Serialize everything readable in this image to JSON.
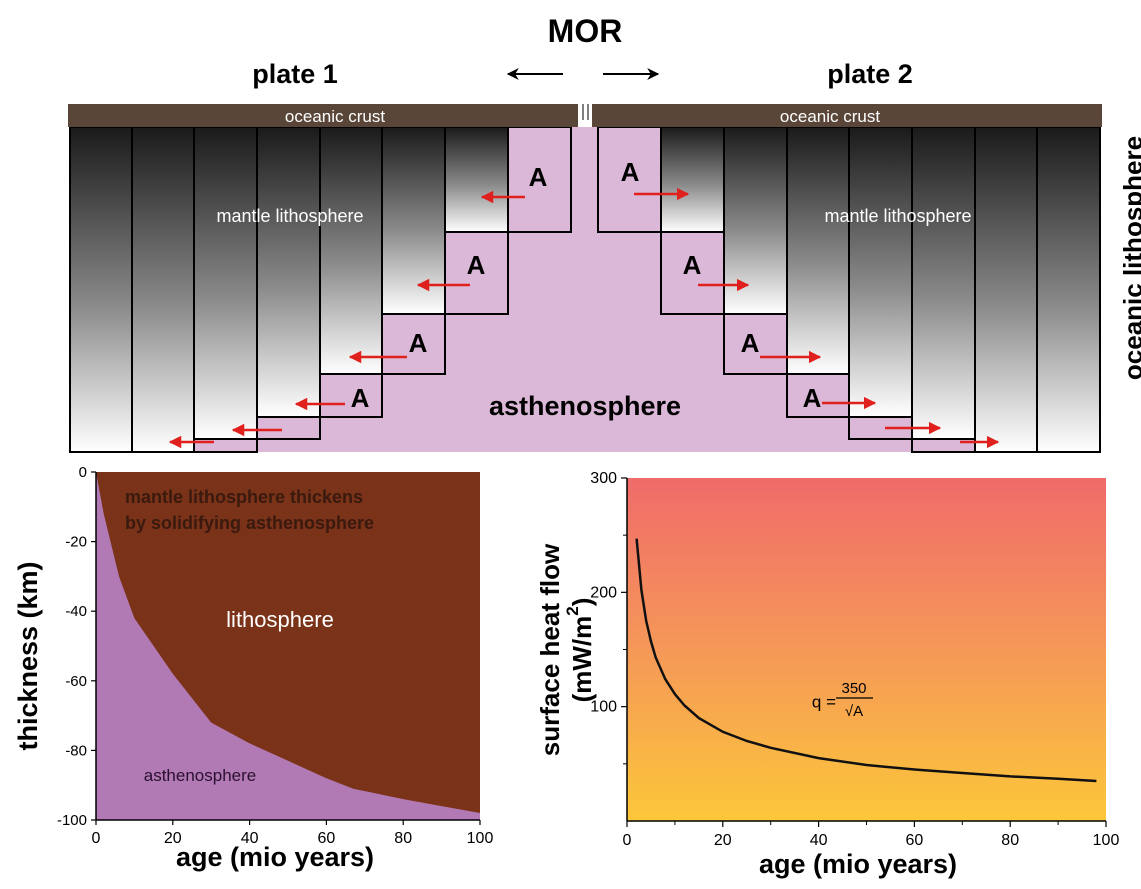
{
  "diagram": {
    "ridge_label": "MOR",
    "plate_left_label": "plate 1",
    "plate_right_label": "plate 2",
    "crust_left_label": "oceanic crust",
    "crust_right_label": "oceanic crust",
    "mantle_left_label": "mantle lithosphere",
    "mantle_right_label": "mantle lithosphere",
    "asthenosphere_label": "asthenosphere",
    "accretion_label": "A",
    "side_label": "oceanic lithosphere",
    "colors": {
      "crust": "#5a4638",
      "asthenosphere": "#dcb8d8",
      "arrow": "#e0201c"
    }
  },
  "chart_data": [
    {
      "type": "area",
      "title": "",
      "xlabel": "age (mio years)",
      "ylabel": "thickness (km)",
      "xlim": [
        0,
        100
      ],
      "ylim": [
        -100,
        0
      ],
      "x_ticks": [
        "0",
        "20",
        "40",
        "60",
        "80",
        "100"
      ],
      "y_ticks": [
        "0",
        "-20",
        "-40",
        "-60",
        "-80",
        "-100"
      ],
      "annotation": "mantle lithosphere thickens by solidifying asthenosphere",
      "annotation_lines": [
        "mantle lithosphere thickens",
        "by solidifying asthenosphere"
      ],
      "region_upper_label": "lithosphere",
      "region_lower_label": "asthenosphere",
      "boundary": {
        "x": [
          0,
          2,
          6,
          10,
          20,
          30,
          40,
          50,
          60,
          67,
          80,
          90,
          100
        ],
        "y": [
          0,
          -12,
          -30,
          -42,
          -58,
          -72,
          -78,
          -83,
          -88,
          -91,
          -94,
          -96,
          -98
        ]
      },
      "colors": {
        "lithosphere": "#7a3218",
        "asthenosphere": "#b27ab4"
      }
    },
    {
      "type": "line",
      "title": "",
      "xlabel": "age (mio years)",
      "ylabel_line1": "surface heat flow",
      "ylabel_line2": "(mW/m",
      "ylabel_sup": "2",
      "ylabel_close": ")",
      "xlim": [
        0,
        100
      ],
      "ylim": [
        0,
        300
      ],
      "x_ticks": [
        "0",
        "20",
        "40",
        "60",
        "80",
        "100"
      ],
      "y_ticks": [
        "100",
        "200",
        "300"
      ],
      "equation_lhs": "q = ",
      "equation_num": "350",
      "equation_den": "√A",
      "series": [
        {
          "x": [
            2,
            3,
            4,
            5,
            6,
            8,
            10,
            12,
            15,
            20,
            25,
            30,
            40,
            50,
            60,
            70,
            80,
            90,
            98
          ],
          "y": [
            247,
            202,
            175,
            157,
            143,
            124,
            111,
            101,
            90,
            78,
            70,
            64,
            55,
            49,
            45,
            42,
            39,
            37,
            35
          ]
        }
      ],
      "colors": {
        "gradient_top": "#f06b6a",
        "gradient_mid": "#f59858",
        "gradient_bottom": "#fcc73a",
        "line": "#111111"
      }
    }
  ]
}
